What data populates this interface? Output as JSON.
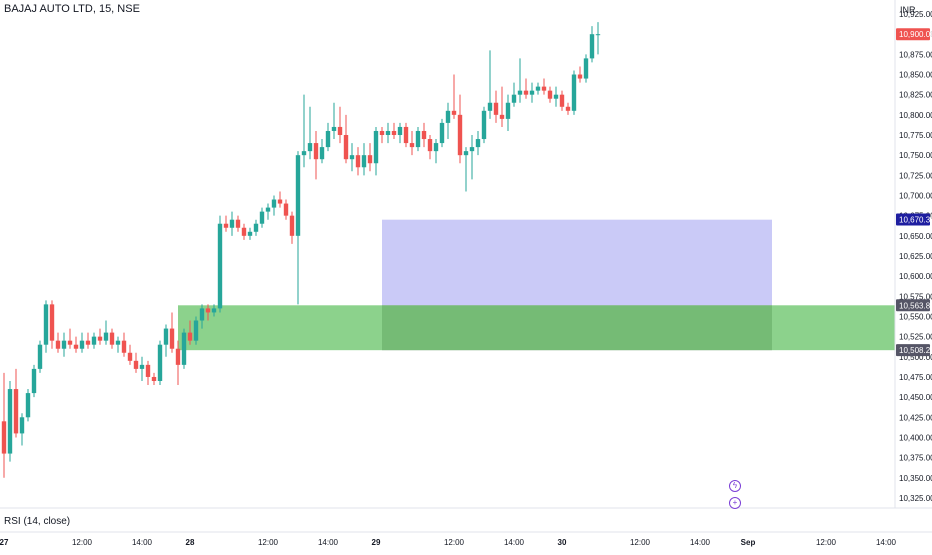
{
  "header": {
    "symbol_title": "BAJAJ AUTO LTD, 15, NSE",
    "currency": "INR"
  },
  "indicator": {
    "label": "RSI (14, close)"
  },
  "icons": {
    "flash": "lightning-icon",
    "add": "plus-circle-icon"
  },
  "colors": {
    "up": "#26a69a",
    "down": "#ef5350",
    "zone_green": "#66c366",
    "zone_blue": "#b8b8f4",
    "zone_gray": "#555555",
    "accent_purple": "#7b3fd6"
  },
  "chart_data": {
    "type": "candlestick",
    "title": "BAJAJ AUTO LTD, 15, NSE",
    "y_unit": "INR",
    "ylim": [
      10315,
      10930
    ],
    "y_ticks": [
      10325,
      10350,
      10375,
      10400,
      10425,
      10450,
      10475,
      10500,
      10525,
      10550,
      10575,
      10600,
      10625,
      10650,
      10675,
      10700,
      10725,
      10750,
      10775,
      10800,
      10825,
      10850,
      10875,
      10900,
      10925
    ],
    "y_tick_labels": [
      "10,325.00",
      "10,350.00",
      "10,375.00",
      "10,400.00",
      "10,425.00",
      "10,450.00",
      "10,475.00",
      "10,500.00",
      "10,525.00",
      "10,550.00",
      "10,575.00",
      "10,600.00",
      "10,625.00",
      "10,650.00",
      "10,675.00",
      "10,700.00",
      "10,725.00",
      "10,750.00",
      "10,775.00",
      "10,800.00",
      "10,825.00",
      "10,850.00",
      "10,875.00",
      "10,900.00",
      "10,925.00"
    ],
    "x_ticks": [
      {
        "label": "27",
        "bar": 0
      },
      {
        "label": "12:00",
        "bar": 13
      },
      {
        "label": "14:00",
        "bar": 23
      },
      {
        "label": "28",
        "bar": 31
      },
      {
        "label": "12:00",
        "bar": 44
      },
      {
        "label": "14:00",
        "bar": 54
      },
      {
        "label": "29",
        "bar": 62
      },
      {
        "label": "12:00",
        "bar": 75
      },
      {
        "label": "14:00",
        "bar": 85
      },
      {
        "label": "30",
        "bar": 93
      },
      {
        "label": "12:00",
        "bar": 106
      },
      {
        "label": "14:00",
        "bar": 116
      },
      {
        "label": "Sep",
        "bar": 124
      },
      {
        "label": "12:00",
        "bar": 137
      },
      {
        "label": "14:00",
        "bar": 147
      }
    ],
    "candles": [
      [
        10420,
        10480,
        10350,
        10380
      ],
      [
        10380,
        10470,
        10370,
        10460
      ],
      [
        10460,
        10485,
        10400,
        10405
      ],
      [
        10405,
        10430,
        10390,
        10425
      ],
      [
        10425,
        10460,
        10420,
        10455
      ],
      [
        10455,
        10490,
        10450,
        10485
      ],
      [
        10485,
        10520,
        10480,
        10515
      ],
      [
        10515,
        10570,
        10505,
        10565
      ],
      [
        10565,
        10570,
        10510,
        10520
      ],
      [
        10520,
        10530,
        10505,
        10510
      ],
      [
        10510,
        10530,
        10500,
        10520
      ],
      [
        10520,
        10535,
        10510,
        10515
      ],
      [
        10515,
        10525,
        10505,
        10510
      ],
      [
        10510,
        10530,
        10505,
        10520
      ],
      [
        10520,
        10530,
        10510,
        10515
      ],
      [
        10515,
        10530,
        10510,
        10525
      ],
      [
        10525,
        10535,
        10515,
        10520
      ],
      [
        10520,
        10545,
        10515,
        10530
      ],
      [
        10530,
        10535,
        10510,
        10515
      ],
      [
        10515,
        10525,
        10505,
        10520
      ],
      [
        10520,
        10530,
        10500,
        10505
      ],
      [
        10505,
        10515,
        10490,
        10495
      ],
      [
        10495,
        10505,
        10480,
        10485
      ],
      [
        10485,
        10500,
        10470,
        10490
      ],
      [
        10490,
        10495,
        10465,
        10475
      ],
      [
        10475,
        10480,
        10465,
        10470
      ],
      [
        10470,
        10520,
        10465,
        10515
      ],
      [
        10515,
        10540,
        10500,
        10535
      ],
      [
        10535,
        10555,
        10505,
        10510
      ],
      [
        10510,
        10520,
        10465,
        10490
      ],
      [
        10490,
        10535,
        10485,
        10530
      ],
      [
        10530,
        10545,
        10515,
        10520
      ],
      [
        10520,
        10550,
        10515,
        10545
      ],
      [
        10545,
        10565,
        10535,
        10560
      ],
      [
        10560,
        10565,
        10545,
        10555
      ],
      [
        10555,
        10565,
        10550,
        10560
      ],
      [
        10560,
        10675,
        10555,
        10665
      ],
      [
        10665,
        10675,
        10655,
        10660
      ],
      [
        10660,
        10680,
        10650,
        10670
      ],
      [
        10670,
        10675,
        10655,
        10660
      ],
      [
        10660,
        10665,
        10645,
        10650
      ],
      [
        10650,
        10660,
        10645,
        10655
      ],
      [
        10655,
        10670,
        10650,
        10665
      ],
      [
        10665,
        10685,
        10660,
        10680
      ],
      [
        10680,
        10690,
        10670,
        10685
      ],
      [
        10685,
        10700,
        10675,
        10695
      ],
      [
        10695,
        10705,
        10685,
        10690
      ],
      [
        10690,
        10695,
        10670,
        10675
      ],
      [
        10675,
        10680,
        10640,
        10650
      ],
      [
        10650,
        10755,
        10565,
        10750
      ],
      [
        10750,
        10825,
        10735,
        10755
      ],
      [
        10755,
        10810,
        10745,
        10765
      ],
      [
        10765,
        10780,
        10720,
        10745
      ],
      [
        10745,
        10770,
        10740,
        10760
      ],
      [
        10760,
        10790,
        10755,
        10780
      ],
      [
        10780,
        10815,
        10770,
        10785
      ],
      [
        10785,
        10810,
        10765,
        10775
      ],
      [
        10775,
        10800,
        10740,
        10745
      ],
      [
        10745,
        10765,
        10730,
        10750
      ],
      [
        10750,
        10760,
        10725,
        10735
      ],
      [
        10735,
        10765,
        10725,
        10750
      ],
      [
        10750,
        10765,
        10730,
        10740
      ],
      [
        10740,
        10785,
        10725,
        10780
      ],
      [
        10780,
        10785,
        10765,
        10775
      ],
      [
        10775,
        10790,
        10765,
        10780
      ],
      [
        10780,
        10790,
        10770,
        10775
      ],
      [
        10775,
        10790,
        10765,
        10785
      ],
      [
        10785,
        10790,
        10760,
        10765
      ],
      [
        10765,
        10780,
        10750,
        10760
      ],
      [
        10760,
        10785,
        10755,
        10780
      ],
      [
        10780,
        10790,
        10760,
        10770
      ],
      [
        10770,
        10775,
        10745,
        10755
      ],
      [
        10755,
        10770,
        10740,
        10765
      ],
      [
        10765,
        10795,
        10760,
        10790
      ],
      [
        10790,
        10815,
        10770,
        10805
      ],
      [
        10805,
        10850,
        10795,
        10800
      ],
      [
        10800,
        10825,
        10740,
        10750
      ],
      [
        10750,
        10760,
        10705,
        10755
      ],
      [
        10755,
        10775,
        10720,
        10760
      ],
      [
        10760,
        10780,
        10750,
        10770
      ],
      [
        10770,
        10810,
        10765,
        10805
      ],
      [
        10805,
        10880,
        10795,
        10815
      ],
      [
        10815,
        10830,
        10790,
        10800
      ],
      [
        10800,
        10835,
        10785,
        10795
      ],
      [
        10795,
        10825,
        10780,
        10815
      ],
      [
        10815,
        10840,
        10810,
        10825
      ],
      [
        10825,
        10870,
        10815,
        10830
      ],
      [
        10830,
        10845,
        10820,
        10825
      ],
      [
        10825,
        10840,
        10815,
        10830
      ],
      [
        10830,
        10840,
        10825,
        10835
      ],
      [
        10835,
        10845,
        10825,
        10830
      ],
      [
        10830,
        10835,
        10815,
        10820
      ],
      [
        10820,
        10835,
        10810,
        10825
      ],
      [
        10825,
        10830,
        10805,
        10810
      ],
      [
        10810,
        10815,
        10800,
        10805
      ],
      [
        10805,
        10855,
        10800,
        10850
      ],
      [
        10850,
        10860,
        10840,
        10845
      ],
      [
        10845,
        10875,
        10840,
        10870
      ],
      [
        10870,
        10910,
        10865,
        10900
      ],
      [
        10900,
        10915,
        10875,
        10900
      ]
    ],
    "zones": [
      {
        "name": "blue-zone",
        "y_top": 10670,
        "y_bottom": 10563.85,
        "start_bar": 63,
        "end_bar": 128,
        "color": "#b8b8f4"
      },
      {
        "name": "gray-zone",
        "y_top": 10563.85,
        "y_bottom": 10508.2,
        "start_bar": 63,
        "end_bar": 128,
        "color": "#555555"
      },
      {
        "name": "green-zone",
        "y_top": 10563.85,
        "y_bottom": 10508.2,
        "start_bar": 29,
        "end_bar": 160,
        "color": "#66c366"
      }
    ],
    "price_labels": [
      {
        "value": 10900.0,
        "label": "10,900.00",
        "color": "#ef5350"
      },
      {
        "value": 10670.3,
        "label": "10,670.30",
        "color": "#1e1ea0"
      },
      {
        "value": 10563.85,
        "label": "10,563.85",
        "color": "#555566"
      },
      {
        "value": 10508.2,
        "label": "10,508.20",
        "color": "#555566"
      }
    ]
  }
}
